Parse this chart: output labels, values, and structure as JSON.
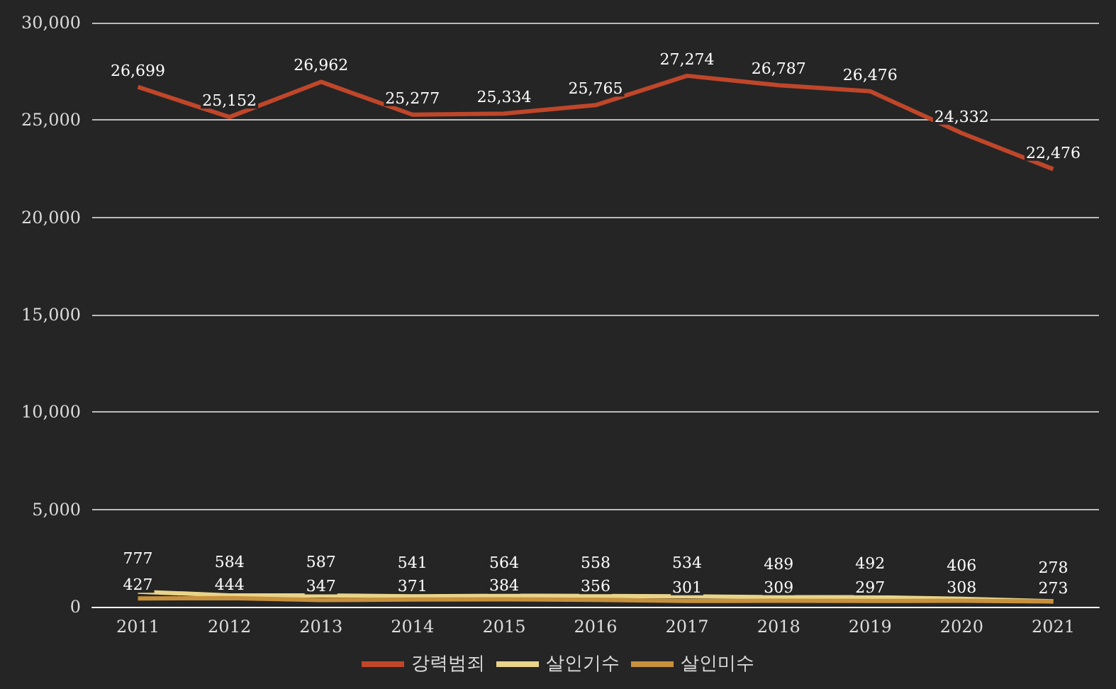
{
  "chart_data": {
    "type": "line",
    "categories": [
      "2011",
      "2012",
      "2013",
      "2014",
      "2015",
      "2016",
      "2017",
      "2018",
      "2019",
      "2020",
      "2021"
    ],
    "series": [
      {
        "name": "강력범죄",
        "color": "#c0462a",
        "values": [
          26699,
          25152,
          26962,
          25277,
          25334,
          25765,
          27274,
          26787,
          26476,
          24332,
          22476
        ],
        "value_labels": [
          "26,699",
          "25,152",
          "26,962",
          "25,277",
          "25,334",
          "25,765",
          "27,274",
          "26,787",
          "26,476",
          "24,332",
          "22,476"
        ]
      },
      {
        "name": "살인기수",
        "color": "#e8d48a",
        "values": [
          777,
          584,
          587,
          541,
          564,
          558,
          534,
          489,
          492,
          406,
          278
        ],
        "value_labels": [
          "777",
          "584",
          "587",
          "541",
          "564",
          "558",
          "534",
          "489",
          "492",
          "406",
          "278"
        ]
      },
      {
        "name": "살인미수",
        "color": "#c8913c",
        "values": [
          427,
          444,
          347,
          371,
          384,
          356,
          301,
          309,
          297,
          308,
          273
        ],
        "value_labels": [
          "427",
          "444",
          "347",
          "371",
          "384",
          "356",
          "301",
          "309",
          "297",
          "308",
          "273"
        ]
      }
    ],
    "ylim": [
      0,
      30000
    ],
    "yticks": [
      0,
      {
        "value": 5000,
        "label": "5,000"
      },
      {
        "value": 10000,
        "label": "10,000"
      },
      {
        "value": 15000,
        "label": "15,000"
      },
      {
        "value": 20000,
        "label": "20,000"
      },
      {
        "value": 25000,
        "label": "25,000"
      },
      {
        "value": 30000,
        "label": "30,000"
      }
    ],
    "grid": "y",
    "legend": "bottom",
    "marker": "none"
  }
}
